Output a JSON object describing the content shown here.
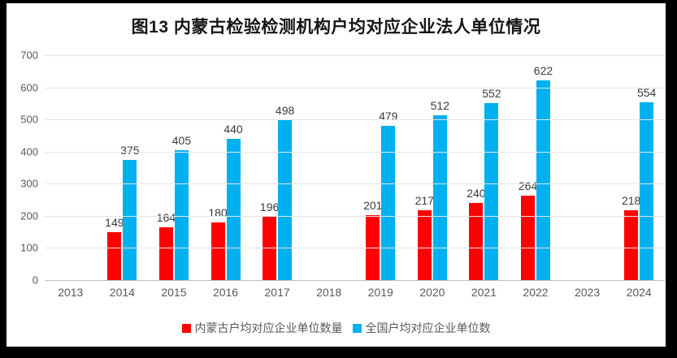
{
  "title": "图13 内蒙古检验检测机构户均对应企业法人单位情况",
  "frame": {
    "border_color": "#000000",
    "background_color": "#ffffff"
  },
  "chart_data": {
    "type": "bar",
    "title": "图13 内蒙古检验检测机构户均对应企业法人单位情况",
    "categories": [
      "2013",
      "2014",
      "2015",
      "2016",
      "2017",
      "2018",
      "2019",
      "2020",
      "2021",
      "2022",
      "2023",
      "2024"
    ],
    "series": [
      {
        "name": "内蒙古户均对应企业单位数量",
        "color": "#ff0000",
        "values": [
          null,
          149,
          164,
          180,
          196,
          null,
          201,
          217,
          240,
          264,
          null,
          218
        ]
      },
      {
        "name": "全国户均对应企业单位数",
        "color": "#00b0f0",
        "values": [
          null,
          375,
          405,
          440,
          498,
          null,
          479,
          512,
          552,
          622,
          null,
          554
        ]
      }
    ],
    "xlabel": "",
    "ylabel": "",
    "ylim": [
      0,
      700
    ],
    "yticks": [
      0,
      100,
      200,
      300,
      400,
      500,
      600,
      700
    ],
    "grid": true,
    "gridline_color": "#e4e4e4",
    "axis_line_color": "#bfbfbf",
    "tick_label_color": "#595959",
    "data_label_color": "#3a3a3a",
    "legend_position": "bottom",
    "data_labels_shown": true
  }
}
